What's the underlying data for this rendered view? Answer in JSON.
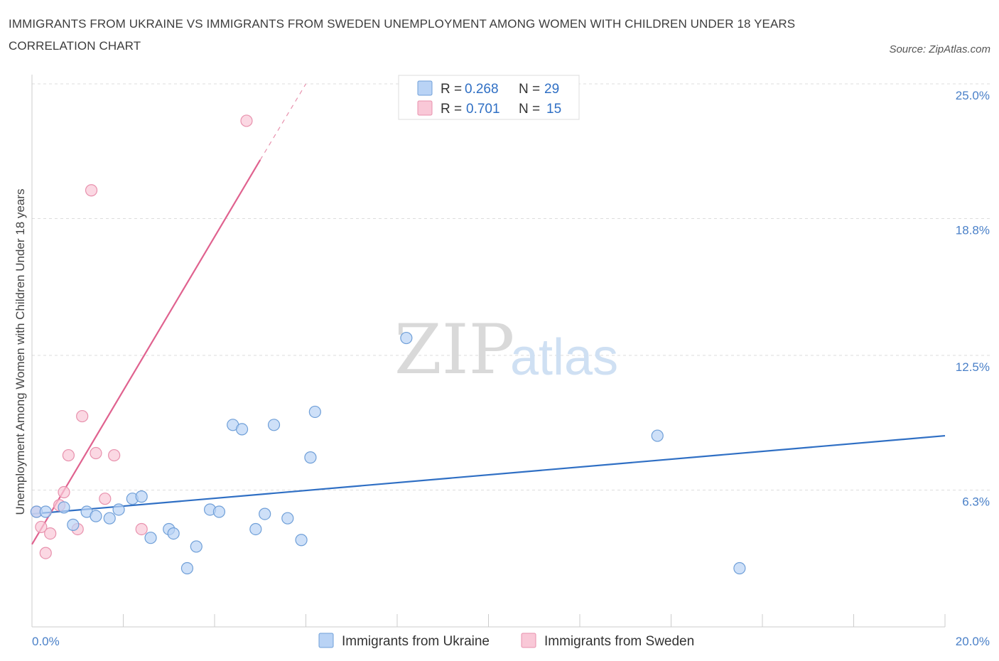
{
  "header": {
    "title": "IMMIGRANTS FROM UKRAINE VS IMMIGRANTS FROM SWEDEN UNEMPLOYMENT AMONG WOMEN WITH CHILDREN UNDER 18 YEARS CORRELATION CHART",
    "source": "Source: ZipAtlas.com"
  },
  "watermark": {
    "zip": "ZIP",
    "atlas": "atlas"
  },
  "legend": {
    "ukraine": {
      "r_label": "R = ",
      "r_value": "0.268",
      "n_label": "N = ",
      "n_value": "29"
    },
    "sweden": {
      "r_label": "R = ",
      "r_value": "0.701",
      "n_label": "N = ",
      "n_value": "15"
    }
  },
  "colors": {
    "ukraine_fill": "#b9d3f5",
    "ukraine_stroke": "#6f9fd8",
    "ukraine_line": "#2f6fc4",
    "sweden_fill": "#f9c8d7",
    "sweden_stroke": "#e891ad",
    "sweden_line": "#e0628f",
    "grid": "#dddddd",
    "axis": "#cccccc",
    "tick_label": "#4a80c8"
  },
  "chart_data": {
    "type": "scatter",
    "title": "IMMIGRANTS FROM UKRAINE VS IMMIGRANTS FROM SWEDEN UNEMPLOYMENT AMONG WOMEN WITH CHILDREN UNDER 18 YEARS CORRELATION CHART",
    "xlabel": "",
    "ylabel": "Unemployment Among Women with Children Under 18 years",
    "xlim": [
      0,
      20
    ],
    "ylim": [
      0,
      25
    ],
    "x_tick_labels": [
      "0.0%",
      "20.0%"
    ],
    "y_ticks": [
      6.3,
      12.5,
      18.8,
      25.0
    ],
    "y_tick_labels": [
      "6.3%",
      "12.5%",
      "18.8%",
      "25.0%"
    ],
    "grid": true,
    "legend_position": "top-center",
    "series": [
      {
        "name": "Immigrants from Ukraine",
        "r": 0.268,
        "n": 29,
        "points": [
          [
            0.1,
            5.3
          ],
          [
            0.3,
            5.3
          ],
          [
            0.7,
            5.5
          ],
          [
            0.9,
            4.7
          ],
          [
            1.2,
            5.3
          ],
          [
            1.4,
            5.1
          ],
          [
            1.7,
            5.0
          ],
          [
            1.9,
            5.4
          ],
          [
            2.2,
            5.9
          ],
          [
            2.4,
            6.0
          ],
          [
            2.6,
            4.1
          ],
          [
            3.0,
            4.5
          ],
          [
            3.1,
            4.3
          ],
          [
            3.4,
            2.7
          ],
          [
            3.6,
            3.7
          ],
          [
            3.9,
            5.4
          ],
          [
            4.1,
            5.3
          ],
          [
            4.4,
            9.3
          ],
          [
            4.6,
            9.1
          ],
          [
            4.9,
            4.5
          ],
          [
            5.1,
            5.2
          ],
          [
            5.3,
            9.3
          ],
          [
            5.6,
            5.0
          ],
          [
            5.9,
            4.0
          ],
          [
            6.1,
            7.8
          ],
          [
            6.2,
            9.9
          ],
          [
            8.2,
            13.3
          ],
          [
            13.7,
            8.8
          ],
          [
            15.5,
            2.7
          ]
        ],
        "trend": {
          "x": [
            0,
            20
          ],
          "y": [
            5.2,
            8.8
          ]
        }
      },
      {
        "name": "Immigrants from Sweden",
        "r": 0.701,
        "n": 15,
        "points": [
          [
            0.1,
            5.3
          ],
          [
            0.2,
            4.6
          ],
          [
            0.3,
            3.4
          ],
          [
            0.4,
            4.3
          ],
          [
            0.6,
            5.6
          ],
          [
            0.7,
            6.2
          ],
          [
            0.8,
            7.9
          ],
          [
            1.0,
            4.5
          ],
          [
            1.1,
            9.7
          ],
          [
            1.3,
            20.1
          ],
          [
            1.4,
            8.0
          ],
          [
            1.6,
            5.9
          ],
          [
            1.8,
            7.9
          ],
          [
            2.4,
            4.5
          ],
          [
            4.7,
            23.3
          ]
        ],
        "trend": {
          "x": [
            0,
            5.0
          ],
          "y": [
            3.8,
            21.5
          ]
        },
        "trend_dashed": {
          "x": [
            5.0,
            6.0
          ],
          "y": [
            21.5,
            25.0
          ]
        }
      }
    ]
  },
  "bottom_legend": {
    "ukraine_label": "Immigrants from Ukraine",
    "sweden_label": "Immigrants from Sweden"
  }
}
